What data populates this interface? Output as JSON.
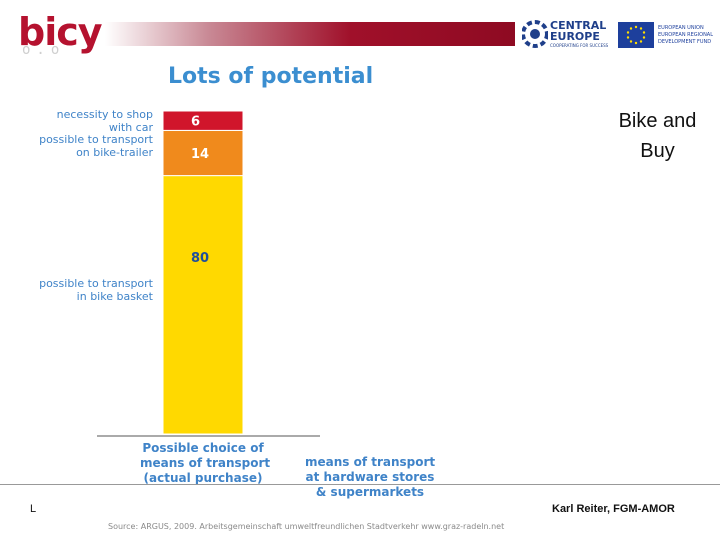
{
  "header": {
    "logo_text": "bicy",
    "logo_sub": "o.o",
    "partner_logo": {
      "line1": "CENTRAL",
      "line2": "EUROPE",
      "tagline": "COOPERATING FOR SUCCESS"
    },
    "eu_logo": {
      "line1": "EUROPEAN UNION",
      "line2": "EUROPEAN REGIONAL",
      "line3": "DEVELOPMENT FUND"
    },
    "accent_color": "#a0102a"
  },
  "slide": {
    "heading": "Bike and Buy"
  },
  "chart_data": {
    "type": "bar",
    "stacked": true,
    "title": "Lots of potential",
    "categories": [
      "Possible choice of means of transport (actual purchase)",
      "means of transport at hardware stores & supermarkets"
    ],
    "category_labels": [
      [
        "Possible choice of",
        "means of transport",
        "(actual purchase)"
      ],
      [
        "means of transport",
        "at hardware stores",
        "& supermarkets"
      ]
    ],
    "series": [
      {
        "name": "possible to transport in bike basket",
        "label_lines": [
          "possible to transport",
          "in bike basket"
        ],
        "values": [
          80,
          null
        ],
        "color": "#ffd900",
        "data_label": "80"
      },
      {
        "name": "possible to transport on bike-trailer",
        "label_lines": [
          "possible to transport",
          "on bike-trailer"
        ],
        "values": [
          14,
          null
        ],
        "color": "#f08a1c",
        "data_label": "14"
      },
      {
        "name": "necessity to shop with car",
        "label_lines": [
          "necessity to shop",
          "with car"
        ],
        "values": [
          6,
          null
        ],
        "color": "#d0152b",
        "data_label": "6"
      }
    ],
    "ylim": [
      0,
      100
    ]
  },
  "footer": {
    "left": "L",
    "author": "Karl Reiter, FGM-AMOR",
    "source": "Source: ARGUS, 2009. Arbeitsgemeinschaft umweltfreundlichen Stadtverkehr www.graz-radeln.net"
  }
}
